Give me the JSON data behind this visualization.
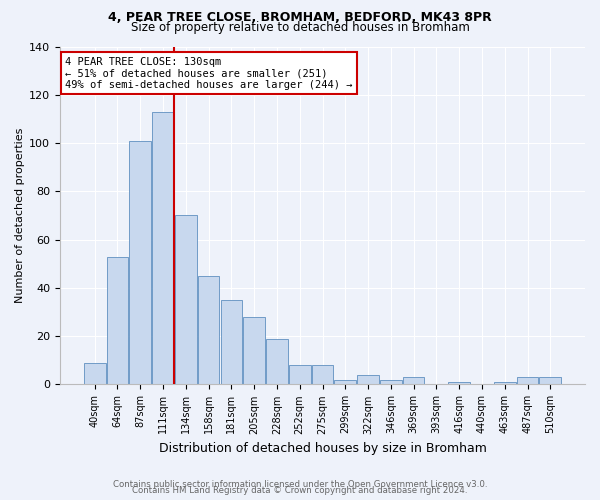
{
  "title1": "4, PEAR TREE CLOSE, BROMHAM, BEDFORD, MK43 8PR",
  "title2": "Size of property relative to detached houses in Bromham",
  "xlabel": "Distribution of detached houses by size in Bromham",
  "ylabel": "Number of detached properties",
  "footer1": "Contains HM Land Registry data © Crown copyright and database right 2024.",
  "footer2": "Contains public sector information licensed under the Open Government Licence v3.0.",
  "annotation_title": "4 PEAR TREE CLOSE: 130sqm",
  "annotation_line1": "← 51% of detached houses are smaller (251)",
  "annotation_line2": "49% of semi-detached houses are larger (244) →",
  "vline_bar_index": 3,
  "bar_labels": [
    "40sqm",
    "64sqm",
    "87sqm",
    "111sqm",
    "134sqm",
    "158sqm",
    "181sqm",
    "205sqm",
    "228sqm",
    "252sqm",
    "275sqm",
    "299sqm",
    "322sqm",
    "346sqm",
    "369sqm",
    "393sqm",
    "416sqm",
    "440sqm",
    "463sqm",
    "487sqm",
    "510sqm"
  ],
  "bar_values": [
    9,
    53,
    101,
    113,
    70,
    45,
    35,
    28,
    19,
    8,
    8,
    2,
    4,
    2,
    3,
    0,
    1,
    0,
    1,
    3,
    3
  ],
  "bar_color": "#c8d8ee",
  "bar_edge_color": "#6090c0",
  "vline_color": "#cc0000",
  "background_color": "#eef2fa",
  "grid_color": "#ffffff",
  "ylim": [
    0,
    140
  ],
  "yticks": [
    0,
    20,
    40,
    60,
    80,
    100,
    120,
    140
  ]
}
